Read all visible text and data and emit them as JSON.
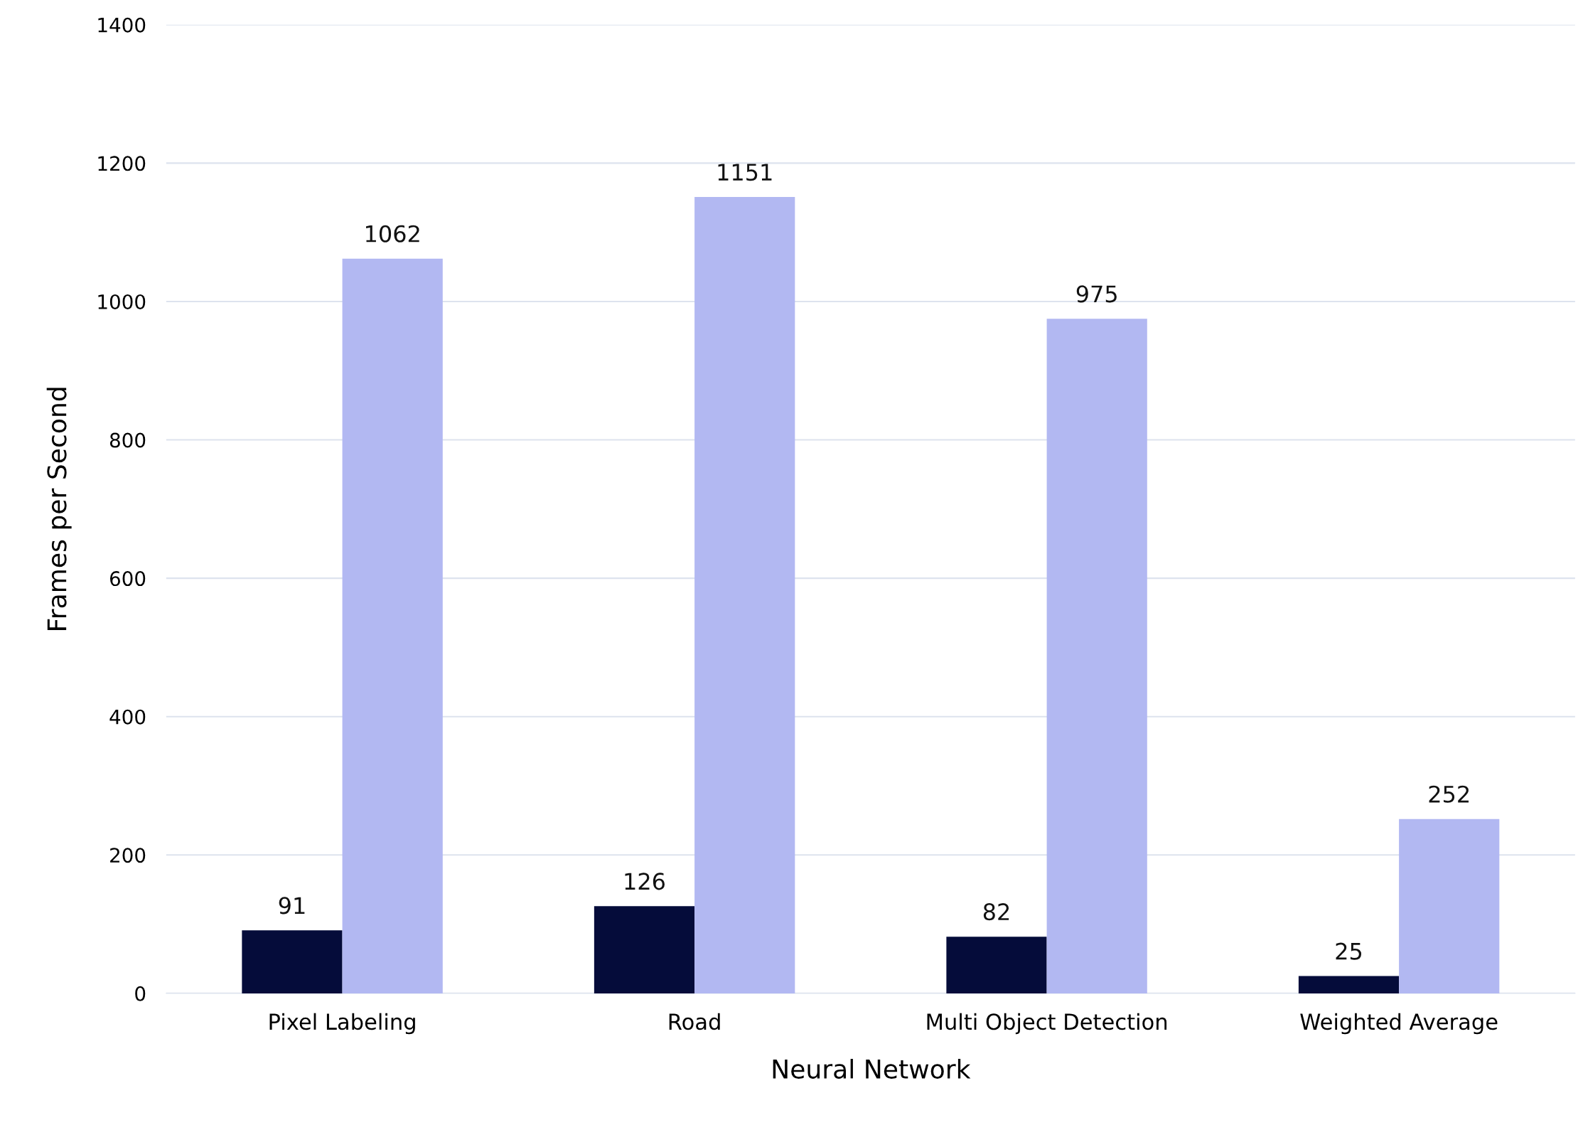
{
  "chart_data": {
    "type": "bar",
    "xlabel": "Neural Network",
    "ylabel": "Frames per Second",
    "categories": [
      "Pixel Labeling",
      "Road",
      "Multi Object Detection",
      "Weighted Average"
    ],
    "series": [
      {
        "color": "#050c3a",
        "values": [
          91,
          126,
          82,
          25
        ]
      },
      {
        "color": "#b2b8f2",
        "values": [
          1062,
          1151,
          975,
          252
        ]
      }
    ],
    "ylim": [
      0,
      1400
    ],
    "yticks": [
      0,
      200,
      400,
      600,
      800,
      1000,
      1200,
      1400
    ],
    "grid": "y",
    "data_labels": true,
    "legend": false
  }
}
